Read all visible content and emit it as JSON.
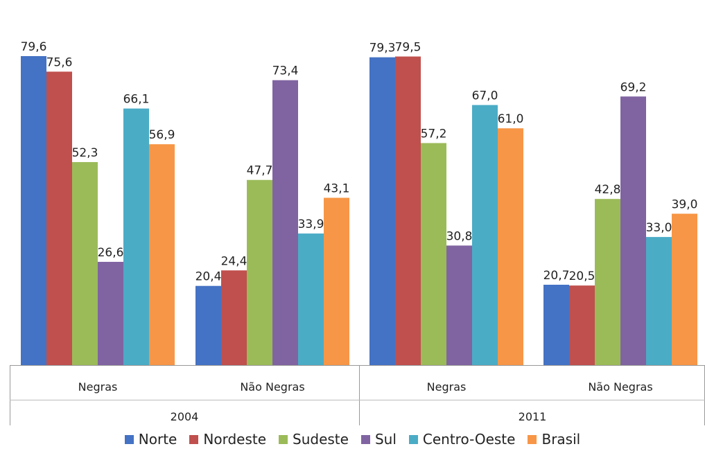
{
  "chart_data": {
    "type": "bar",
    "title": "",
    "xlabel": "",
    "ylabel": "",
    "ylim": [
      0,
      90
    ],
    "grid": false,
    "legend_position": "bottom",
    "groups": [
      {
        "year": "2004",
        "categories": [
          "Negras",
          "Não Negras"
        ]
      },
      {
        "year": "2011",
        "categories": [
          "Negras",
          "Não Negras"
        ]
      }
    ],
    "series": [
      {
        "name": "Norte",
        "color": "#4472c4",
        "values": [
          79.6,
          20.4,
          79.3,
          20.7
        ],
        "labels": [
          "79,6",
          "20,4",
          "79,3",
          "20,7"
        ]
      },
      {
        "name": "Nordeste",
        "color": "#c0504d",
        "values": [
          75.6,
          24.4,
          79.5,
          20.5
        ],
        "labels": [
          "75,6",
          "24,4",
          "79,5",
          "20,5"
        ]
      },
      {
        "name": "Sudeste",
        "color": "#9bbb59",
        "values": [
          52.3,
          47.7,
          57.2,
          42.8
        ],
        "labels": [
          "52,3",
          "47,7",
          "57,2",
          "42,8"
        ]
      },
      {
        "name": "Sul",
        "color": "#8064a2",
        "values": [
          26.6,
          73.4,
          30.8,
          69.2
        ],
        "labels": [
          "26,6",
          "73,4",
          "30,8",
          "69,2"
        ]
      },
      {
        "name": "Centro-Oeste",
        "color": "#4bacc6",
        "values": [
          66.1,
          33.9,
          67.0,
          33.0
        ],
        "labels": [
          "66,1",
          "33,9",
          "67,0",
          "33,0"
        ]
      },
      {
        "name": "Brasil",
        "color": "#f79646",
        "values": [
          56.9,
          43.1,
          61.0,
          39.0
        ],
        "labels": [
          "56,9",
          "43,1",
          "61,0",
          "39,0"
        ]
      }
    ]
  }
}
